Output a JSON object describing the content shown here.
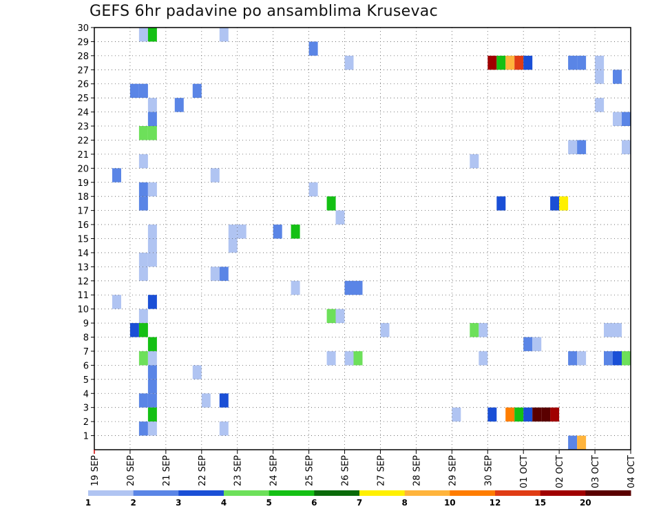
{
  "chart_data": {
    "type": "heatmap",
    "title": "GEFS 6hr padavine po ansamblima Krusevac",
    "xlabel": "",
    "ylabel": "",
    "x_ticks": [
      "19 SEP",
      "20 SEP",
      "21 SEP",
      "22 SEP",
      "23 SEP",
      "24 SEP",
      "25 SEP",
      "26 SEP",
      "27 SEP",
      "28 SEP",
      "29 SEP",
      "30 SEP",
      "01 OCT",
      "02 OCT",
      "03 OCT",
      "04 OCT"
    ],
    "x_range_days": [
      0,
      15
    ],
    "x_note": "x in days since 19 SEP 00Z, 6-hour steps",
    "y_ticks": [
      1,
      2,
      3,
      4,
      5,
      6,
      7,
      8,
      9,
      10,
      11,
      12,
      13,
      14,
      15,
      16,
      17,
      18,
      19,
      20,
      21,
      22,
      23,
      24,
      25,
      26,
      27,
      28,
      29,
      30
    ],
    "y_range": [
      0,
      30
    ],
    "grid": true,
    "colorbar": {
      "labels": [
        "1",
        "2",
        "3",
        "4",
        "5",
        "6",
        "7",
        "8",
        "10",
        "12",
        "15",
        "20"
      ],
      "colors": [
        "#b0c4f2",
        "#5a85e6",
        "#1a4fd6",
        "#6de05a",
        "#14c014",
        "#0a6a0a",
        "#fff000",
        "#ffb43c",
        "#ff7d00",
        "#e03c14",
        "#a00000",
        "#5a0000"
      ]
    },
    "cells": [
      {
        "x": 1.25,
        "y": 30,
        "v": 1
      },
      {
        "x": 1.5,
        "y": 30,
        "v": 5
      },
      {
        "x": 3.5,
        "y": 30,
        "v": 1
      },
      {
        "x": 6.0,
        "y": 29,
        "v": 2
      },
      {
        "x": 7.0,
        "y": 28,
        "v": 1
      },
      {
        "x": 11.0,
        "y": 28,
        "v": 15
      },
      {
        "x": 11.25,
        "y": 28,
        "v": 5
      },
      {
        "x": 11.5,
        "y": 28,
        "v": 8
      },
      {
        "x": 11.75,
        "y": 28,
        "v": 12
      },
      {
        "x": 12.0,
        "y": 28,
        "v": 3
      },
      {
        "x": 13.25,
        "y": 28,
        "v": 2
      },
      {
        "x": 13.5,
        "y": 28,
        "v": 2
      },
      {
        "x": 14.0,
        "y": 28,
        "v": 1
      },
      {
        "x": 14.0,
        "y": 27,
        "v": 1
      },
      {
        "x": 14.5,
        "y": 27,
        "v": 2
      },
      {
        "x": 1.0,
        "y": 26,
        "v": 2
      },
      {
        "x": 1.25,
        "y": 26,
        "v": 2
      },
      {
        "x": 2.75,
        "y": 26,
        "v": 2
      },
      {
        "x": 1.5,
        "y": 25,
        "v": 1
      },
      {
        "x": 2.25,
        "y": 25,
        "v": 2
      },
      {
        "x": 14.0,
        "y": 25,
        "v": 1
      },
      {
        "x": 1.5,
        "y": 24,
        "v": 2
      },
      {
        "x": 14.5,
        "y": 24,
        "v": 1
      },
      {
        "x": 14.75,
        "y": 24,
        "v": 2
      },
      {
        "x": 1.25,
        "y": 23,
        "v": 4
      },
      {
        "x": 1.5,
        "y": 23,
        "v": 4
      },
      {
        "x": 13.25,
        "y": 22,
        "v": 1
      },
      {
        "x": 13.5,
        "y": 22,
        "v": 2
      },
      {
        "x": 14.75,
        "y": 22,
        "v": 1
      },
      {
        "x": 1.25,
        "y": 21,
        "v": 1
      },
      {
        "x": 10.5,
        "y": 21,
        "v": 1
      },
      {
        "x": 0.5,
        "y": 20,
        "v": 2
      },
      {
        "x": 3.25,
        "y": 20,
        "v": 1
      },
      {
        "x": 1.25,
        "y": 19,
        "v": 2
      },
      {
        "x": 1.5,
        "y": 19,
        "v": 1
      },
      {
        "x": 6.0,
        "y": 19,
        "v": 1
      },
      {
        "x": 1.25,
        "y": 18,
        "v": 2
      },
      {
        "x": 6.5,
        "y": 18,
        "v": 5
      },
      {
        "x": 11.25,
        "y": 18,
        "v": 3
      },
      {
        "x": 12.75,
        "y": 18,
        "v": 3
      },
      {
        "x": 13.0,
        "y": 18,
        "v": 7
      },
      {
        "x": 6.75,
        "y": 17,
        "v": 1
      },
      {
        "x": 1.5,
        "y": 16,
        "v": 1
      },
      {
        "x": 3.75,
        "y": 16,
        "v": 1
      },
      {
        "x": 4.0,
        "y": 16,
        "v": 1
      },
      {
        "x": 5.0,
        "y": 16,
        "v": 2
      },
      {
        "x": 5.5,
        "y": 16,
        "v": 5
      },
      {
        "x": 1.5,
        "y": 15,
        "v": 1
      },
      {
        "x": 3.75,
        "y": 15,
        "v": 1
      },
      {
        "x": 1.25,
        "y": 14,
        "v": 1
      },
      {
        "x": 1.5,
        "y": 14,
        "v": 1
      },
      {
        "x": 1.25,
        "y": 13,
        "v": 1
      },
      {
        "x": 3.25,
        "y": 13,
        "v": 1
      },
      {
        "x": 3.5,
        "y": 13,
        "v": 2
      },
      {
        "x": 5.5,
        "y": 12,
        "v": 1
      },
      {
        "x": 7.0,
        "y": 12,
        "v": 2
      },
      {
        "x": 7.25,
        "y": 12,
        "v": 2
      },
      {
        "x": 0.5,
        "y": 11,
        "v": 1
      },
      {
        "x": 1.5,
        "y": 11,
        "v": 3
      },
      {
        "x": 1.25,
        "y": 10,
        "v": 1
      },
      {
        "x": 6.5,
        "y": 10,
        "v": 4
      },
      {
        "x": 6.75,
        "y": 10,
        "v": 1
      },
      {
        "x": 1.0,
        "y": 9,
        "v": 3
      },
      {
        "x": 1.25,
        "y": 9,
        "v": 5
      },
      {
        "x": 8.0,
        "y": 9,
        "v": 1
      },
      {
        "x": 10.5,
        "y": 9,
        "v": 4
      },
      {
        "x": 10.75,
        "y": 9,
        "v": 1
      },
      {
        "x": 14.25,
        "y": 9,
        "v": 1
      },
      {
        "x": 14.5,
        "y": 9,
        "v": 1
      },
      {
        "x": 1.5,
        "y": 8,
        "v": 5
      },
      {
        "x": 12.0,
        "y": 8,
        "v": 2
      },
      {
        "x": 12.25,
        "y": 8,
        "v": 1
      },
      {
        "x": 1.25,
        "y": 7,
        "v": 4
      },
      {
        "x": 1.5,
        "y": 7,
        "v": 1
      },
      {
        "x": 6.5,
        "y": 7,
        "v": 1
      },
      {
        "x": 7.0,
        "y": 7,
        "v": 1
      },
      {
        "x": 7.25,
        "y": 7,
        "v": 4
      },
      {
        "x": 10.75,
        "y": 7,
        "v": 1
      },
      {
        "x": 13.25,
        "y": 7,
        "v": 2
      },
      {
        "x": 13.5,
        "y": 7,
        "v": 1
      },
      {
        "x": 14.25,
        "y": 7,
        "v": 2
      },
      {
        "x": 14.5,
        "y": 7,
        "v": 3
      },
      {
        "x": 14.75,
        "y": 7,
        "v": 4
      },
      {
        "x": 1.5,
        "y": 6,
        "v": 2
      },
      {
        "x": 2.75,
        "y": 6,
        "v": 1
      },
      {
        "x": 1.5,
        "y": 5,
        "v": 2
      },
      {
        "x": 1.25,
        "y": 4,
        "v": 2
      },
      {
        "x": 1.5,
        "y": 4,
        "v": 2
      },
      {
        "x": 3.0,
        "y": 4,
        "v": 1
      },
      {
        "x": 3.5,
        "y": 4,
        "v": 3
      },
      {
        "x": 1.5,
        "y": 3,
        "v": 5
      },
      {
        "x": 10.0,
        "y": 3,
        "v": 1
      },
      {
        "x": 11.0,
        "y": 3,
        "v": 3
      },
      {
        "x": 11.5,
        "y": 3,
        "v": 10
      },
      {
        "x": 11.75,
        "y": 3,
        "v": 5
      },
      {
        "x": 12.0,
        "y": 3,
        "v": 3
      },
      {
        "x": 12.25,
        "y": 3,
        "v": 20
      },
      {
        "x": 12.5,
        "y": 3,
        "v": 20
      },
      {
        "x": 12.75,
        "y": 3,
        "v": 15
      },
      {
        "x": 1.25,
        "y": 2,
        "v": 2
      },
      {
        "x": 1.5,
        "y": 2,
        "v": 1
      },
      {
        "x": 3.5,
        "y": 2,
        "v": 1
      },
      {
        "x": 13.25,
        "y": 1,
        "v": 2
      },
      {
        "x": 13.5,
        "y": 1,
        "v": 8
      }
    ]
  }
}
